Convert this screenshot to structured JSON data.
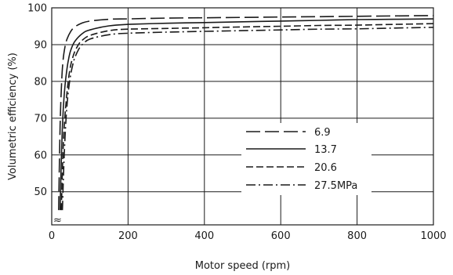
{
  "chart_data": {
    "type": "line",
    "title": "",
    "xlabel": "Motor speed (rpm)",
    "ylabel": "Volumetric efficiency (%)",
    "xlim": [
      0,
      1000
    ],
    "ylim": [
      41,
      100
    ],
    "x_ticks": [
      0,
      200,
      400,
      600,
      800,
      1000
    ],
    "y_ticks": [
      50,
      60,
      70,
      80,
      90,
      100
    ],
    "axis_break_symbol": "≈",
    "grid": true,
    "legend_position": "center-right",
    "series": [
      {
        "name": "6.9",
        "dash": "long-dash",
        "x": [
          18,
          22,
          26,
          30,
          35,
          40,
          50,
          60,
          80,
          100,
          150,
          200,
          300,
          400,
          500,
          600,
          700,
          800,
          900,
          1000
        ],
        "y": [
          45,
          68,
          80,
          86,
          89.5,
          91.5,
          93.6,
          94.8,
          95.9,
          96.4,
          96.9,
          97.0,
          97.2,
          97.3,
          97.4,
          97.5,
          97.6,
          97.7,
          97.8,
          97.9
        ]
      },
      {
        "name": "13.7",
        "dash": "solid",
        "x": [
          22,
          26,
          30,
          35,
          40,
          45,
          50,
          60,
          80,
          100,
          150,
          200,
          300,
          400,
          500,
          600,
          700,
          800,
          900,
          1000
        ],
        "y": [
          45,
          62,
          72,
          79,
          83.5,
          86.5,
          88.5,
          90.8,
          93,
          94,
          95.1,
          95.5,
          95.8,
          96.0,
          96.2,
          96.4,
          96.6,
          96.8,
          96.9,
          97.0
        ]
      },
      {
        "name": "20.6",
        "dash": "short-dash",
        "x": [
          25,
          30,
          35,
          40,
          45,
          50,
          55,
          60,
          70,
          80,
          100,
          150,
          200,
          300,
          400,
          500,
          600,
          700,
          800,
          900,
          1000
        ],
        "y": [
          45,
          62,
          71,
          77,
          81.5,
          84.5,
          86.5,
          88,
          90,
          91.2,
          92.5,
          93.8,
          94.2,
          94.4,
          94.6,
          94.8,
          95.0,
          95.2,
          95.3,
          95.5,
          95.7
        ]
      },
      {
        "name": "27.5MPa",
        "dash": "dash-dot",
        "x": [
          28,
          32,
          36,
          40,
          45,
          50,
          55,
          60,
          70,
          80,
          100,
          150,
          200,
          300,
          400,
          500,
          600,
          700,
          800,
          900,
          1000
        ],
        "y": [
          45,
          58,
          67,
          73.5,
          78.5,
          82,
          84.5,
          86.3,
          88.6,
          90,
          91.5,
          92.7,
          93.1,
          93.4,
          93.6,
          93.8,
          94.0,
          94.2,
          94.3,
          94.5,
          94.7
        ]
      }
    ]
  }
}
